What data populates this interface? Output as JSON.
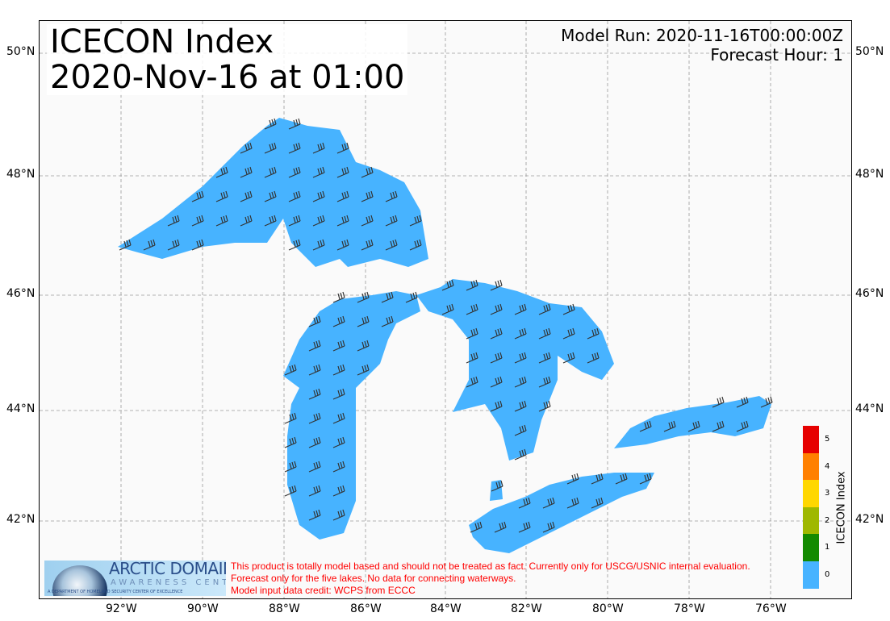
{
  "title": {
    "line1": "ICECON Index",
    "line2": "2020-Nov-16 at 01:00"
  },
  "model_run": "Model Run: 2020-11-16T00:00:00Z",
  "forecast_hour": "Forecast Hour: 1",
  "axes": {
    "lon_ticks": [
      "92°W",
      "90°W",
      "88°W",
      "86°W",
      "84°W",
      "82°W",
      "80°W",
      "78°W",
      "76°W"
    ],
    "lat_ticks": [
      "50°N",
      "48°N",
      "46°N",
      "44°N",
      "42°N"
    ],
    "gridlines": true
  },
  "map": {
    "lake_color": "#47b3ff",
    "lakes": [
      "Superior",
      "Michigan",
      "Huron",
      "Erie",
      "Ontario"
    ],
    "barb_color": "#333333"
  },
  "colorbar": {
    "label": "ICECON Index",
    "ticks": [
      "5",
      "4",
      "3",
      "2",
      "1",
      "0"
    ],
    "colors": [
      "#e60000",
      "#ff8000",
      "#ffd700",
      "#9fb800",
      "#138a00",
      "#47b3ff"
    ]
  },
  "logo": {
    "line1": "ARCTIC DOMAIN",
    "line2": "AWARENESS CENTER",
    "line3": "A DEPARTMENT OF HOMELAND SECURITY CENTER OF EXCELLENCE"
  },
  "disclaimer": [
    "This product is totally model based and should not be treated as fact. Currently only for USCG/USNIC internal evaluation.",
    "Forecast only for the five lakes. No data for connecting waterways.",
    "Model input data credit: WCPS from ECCC"
  ]
}
